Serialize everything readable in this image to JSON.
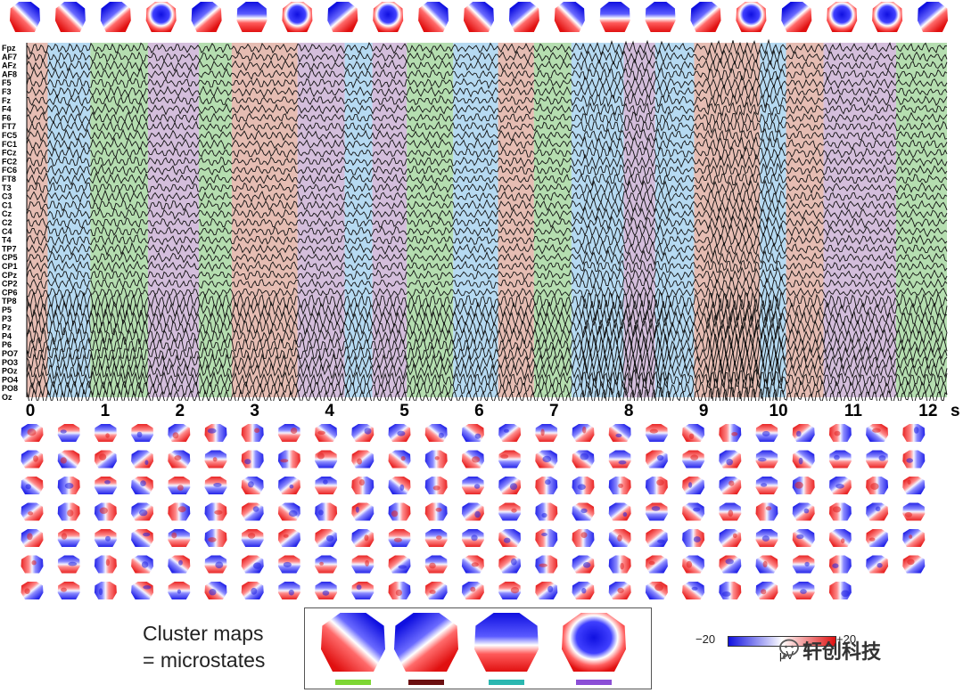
{
  "channels": [
    "Fpz",
    "AF7",
    "AFz",
    "AF8",
    "F5",
    "F3",
    "Fz",
    "F4",
    "F6",
    "FT7",
    "FC5",
    "FC1",
    "FCz",
    "FC2",
    "FC6",
    "FT8",
    "T3",
    "C3",
    "C1",
    "Cz",
    "C2",
    "C4",
    "T4",
    "TP7",
    "CP5",
    "CP1",
    "CPz",
    "CP2",
    "CP6",
    "TP8",
    "P5",
    "P3",
    "Pz",
    "P4",
    "P6",
    "PO7",
    "PO3",
    "POz",
    "PO4",
    "PO8",
    "Oz"
  ],
  "time_axis": {
    "ticks": [
      "0",
      "1",
      "2",
      "3",
      "4",
      "5",
      "6",
      "7",
      "8",
      "9",
      "10",
      "11",
      "12"
    ],
    "unit": "s",
    "max_seconds": 12.3
  },
  "microstate_colors": {
    "A": "#7dd634",
    "B": "#6b0f10",
    "C": "#2ab7b0",
    "D": "#8b4ed6"
  },
  "segment_shading": {
    "A": "#a8d8a2",
    "B": "#e2b1a6",
    "C": "#a9d3f0",
    "D": "#ccb3d6"
  },
  "segments": [
    {
      "state": "B",
      "start": 0.0,
      "end": 0.28
    },
    {
      "state": "C",
      "start": 0.28,
      "end": 0.85
    },
    {
      "state": "A",
      "start": 0.85,
      "end": 1.62
    },
    {
      "state": "D",
      "start": 1.62,
      "end": 2.3
    },
    {
      "state": "A",
      "start": 2.3,
      "end": 2.74
    },
    {
      "state": "B",
      "start": 2.74,
      "end": 3.62
    },
    {
      "state": "D",
      "start": 3.62,
      "end": 4.25
    },
    {
      "state": "C",
      "start": 4.25,
      "end": 4.62
    },
    {
      "state": "D",
      "start": 4.62,
      "end": 5.08
    },
    {
      "state": "A",
      "start": 5.08,
      "end": 5.7
    },
    {
      "state": "C",
      "start": 5.7,
      "end": 6.3
    },
    {
      "state": "B",
      "start": 6.3,
      "end": 6.78
    },
    {
      "state": "A",
      "start": 6.78,
      "end": 7.28
    },
    {
      "state": "C",
      "start": 7.28,
      "end": 7.98
    },
    {
      "state": "D",
      "start": 7.98,
      "end": 8.4
    },
    {
      "state": "C",
      "start": 8.4,
      "end": 8.92
    },
    {
      "state": "B",
      "start": 8.92,
      "end": 9.8
    },
    {
      "state": "C",
      "start": 9.8,
      "end": 10.15
    },
    {
      "state": "B",
      "start": 10.15,
      "end": 10.65
    },
    {
      "state": "D",
      "start": 10.65,
      "end": 11.62
    },
    {
      "state": "A",
      "start": 11.62,
      "end": 12.3
    }
  ],
  "top_maps": [
    "A",
    "A",
    "B",
    "D",
    "B",
    "C",
    "D",
    "B",
    "D",
    "A",
    "A",
    "B",
    "A",
    "C",
    "C",
    "B",
    "D",
    "B",
    "D",
    "D",
    "B"
  ],
  "momentary_maps": {
    "rows": 7,
    "per_row": [
      25,
      25,
      25,
      25,
      25,
      25,
      23
    ]
  },
  "cluster_legend": {
    "title_line1": "Cluster maps",
    "title_line2": "= microstates",
    "maps": [
      {
        "state": "A",
        "bar_color": "#7dd634"
      },
      {
        "state": "B",
        "bar_color": "#6b0f10"
      },
      {
        "state": "C",
        "bar_color": "#2ab7b0"
      },
      {
        "state": "D",
        "bar_color": "#8b4ed6"
      }
    ]
  },
  "colorbar": {
    "min_label": "−20",
    "max_label": "+20",
    "unit": "μV",
    "low_color": "#1010e0",
    "mid_color": "#ffffff",
    "high_color": "#e01010"
  },
  "watermark": "轩创科技"
}
